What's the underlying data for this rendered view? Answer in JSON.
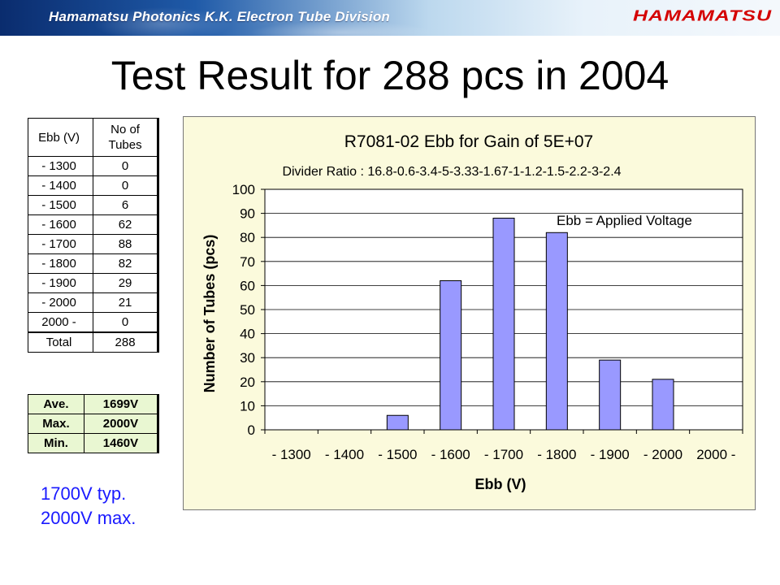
{
  "header": {
    "banner_text": "Hamamatsu Photonics K.K.  Electron Tube Division",
    "logo_text": "HAMAMATSU",
    "colors": {
      "banner_dark": "#0a2c6e",
      "logo_red": "#d40000"
    }
  },
  "page_title": "Test Result for 288 pcs in 2004",
  "distribution_table": {
    "header": [
      "Ebb (V)",
      "No of Tubes"
    ],
    "rows": [
      [
        "- 1300",
        "0"
      ],
      [
        "- 1400",
        "0"
      ],
      [
        "- 1500",
        "6"
      ],
      [
        "- 1600",
        "62"
      ],
      [
        "- 1700",
        "88"
      ],
      [
        "- 1800",
        "82"
      ],
      [
        "- 1900",
        "29"
      ],
      [
        "- 2000",
        "21"
      ],
      [
        "2000 -",
        "0"
      ]
    ],
    "total": [
      "Total",
      "288"
    ]
  },
  "stats_table": {
    "rows": [
      [
        "Ave.",
        "1699V"
      ],
      [
        "Max.",
        "2000V"
      ],
      [
        "Min.",
        "1460V"
      ]
    ],
    "bg_color": "#e9f7d2"
  },
  "notes": [
    "1700V typ.",
    "2000V max."
  ],
  "chart_data": {
    "type": "bar",
    "title": "R7081-02 Ebb for Gain of 5E+07",
    "subtitle": "Divider Ratio : 16.8-0.6-3.4-5-3.33-1.67-1-1.2-1.5-2.2-3-2.4",
    "annotation": "Ebb = Applied Voltage",
    "xlabel": "Ebb (V)",
    "ylabel": "Number of Tubes (pcs)",
    "categories": [
      "- 1300",
      "- 1400",
      "- 1500",
      "- 1600",
      "- 1700",
      "- 1800",
      "- 1900",
      "- 2000",
      "2000 -"
    ],
    "values": [
      0,
      0,
      6,
      62,
      88,
      82,
      29,
      21,
      0
    ],
    "ylim": [
      0,
      100
    ],
    "yticks": [
      0,
      10,
      20,
      30,
      40,
      50,
      60,
      70,
      80,
      90,
      100
    ],
    "grid": true,
    "colors": {
      "bar": "#9999ff",
      "background": "#fbfadc",
      "plot": "#ffffff"
    }
  }
}
